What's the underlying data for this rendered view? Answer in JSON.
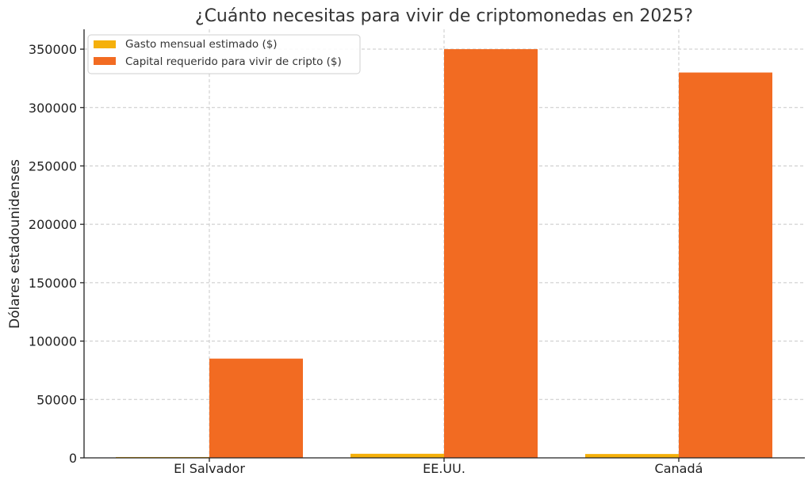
{
  "chart_data": {
    "type": "bar",
    "title": "¿Cuánto necesitas para vivir de criptomonedas en 2025?",
    "xlabel": "",
    "ylabel": "Dólares estadounidenses",
    "categories": [
      "El Salvador",
      "EE.UU.",
      "Canadá"
    ],
    "series": [
      {
        "name": "Gasto mensual estimado ($)",
        "color": "#F5B00A",
        "values": [
          700,
          3500,
          3300
        ]
      },
      {
        "name": "Capital requerido para vivir de cripto ($)",
        "color": "#F26B22",
        "values": [
          85000,
          350000,
          330000
        ]
      }
    ],
    "ylim": [
      0,
      367000
    ],
    "yticks": [
      0,
      50000,
      100000,
      150000,
      200000,
      250000,
      300000,
      350000
    ],
    "grid": true,
    "legend_position": "top-left"
  }
}
